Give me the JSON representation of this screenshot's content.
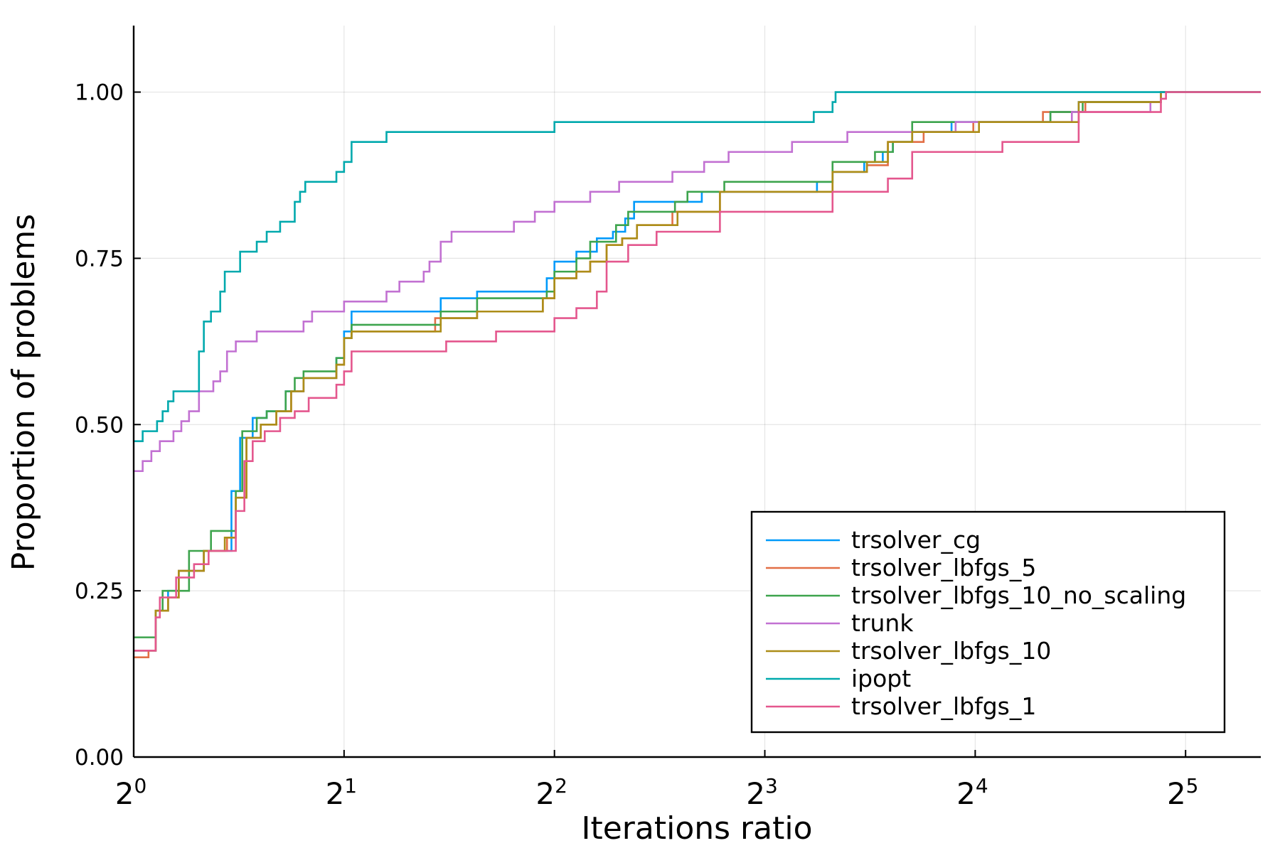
{
  "chart_data": {
    "type": "line",
    "step": true,
    "xlabel": "Iterations ratio",
    "ylabel": "Proportion of problems",
    "x_scale": "log2",
    "xlim": [
      1,
      41
    ],
    "ylim": [
      0,
      1.1
    ],
    "x_ticks": [
      {
        "base": "2",
        "exp": "0",
        "value": 1
      },
      {
        "base": "2",
        "exp": "1",
        "value": 2
      },
      {
        "base": "2",
        "exp": "2",
        "value": 4
      },
      {
        "base": "2",
        "exp": "3",
        "value": 8
      },
      {
        "base": "2",
        "exp": "4",
        "value": 16
      },
      {
        "base": "2",
        "exp": "5",
        "value": 32
      }
    ],
    "y_ticks": [
      {
        "label": "0.00",
        "value": 0
      },
      {
        "label": "0.25",
        "value": 0.25
      },
      {
        "label": "0.50",
        "value": 0.5
      },
      {
        "label": "0.75",
        "value": 0.75
      },
      {
        "label": "1.00",
        "value": 1.0
      }
    ],
    "grid": true,
    "legend_position": "bottom-right",
    "series": [
      {
        "name": "trsolver_cg",
        "color": "#009AFA",
        "points": [
          [
            1.0,
            0.16
          ],
          [
            1.075,
            0.22
          ],
          [
            1.12,
            0.25
          ],
          [
            1.16,
            0.28
          ],
          [
            1.26,
            0.31
          ],
          [
            1.38,
            0.4
          ],
          [
            1.42,
            0.48
          ],
          [
            1.48,
            0.51
          ],
          [
            1.55,
            0.52
          ],
          [
            1.65,
            0.55
          ],
          [
            1.75,
            0.57
          ],
          [
            1.95,
            0.6
          ],
          [
            2.0,
            0.64
          ],
          [
            2.05,
            0.67
          ],
          [
            2.75,
            0.69
          ],
          [
            3.1,
            0.7
          ],
          [
            3.9,
            0.72
          ],
          [
            4.0,
            0.745
          ],
          [
            4.3,
            0.76
          ],
          [
            4.6,
            0.78
          ],
          [
            4.85,
            0.79
          ],
          [
            5.05,
            0.81
          ],
          [
            5.2,
            0.835
          ],
          [
            6.5,
            0.85
          ],
          [
            9.5,
            0.865
          ],
          [
            10.0,
            0.88
          ],
          [
            11.1,
            0.895
          ],
          [
            11.8,
            0.91
          ],
          [
            12.2,
            0.925
          ],
          [
            13.0,
            0.94
          ],
          [
            14.8,
            0.955
          ],
          [
            20.5,
            0.97
          ],
          [
            22.5,
            0.985
          ],
          [
            29.5,
            1.0
          ],
          [
            41,
            1.0
          ]
        ]
      },
      {
        "name": "trsolver_lbfgs_5",
        "color": "#E26F46",
        "points": [
          [
            1.0,
            0.15
          ],
          [
            1.05,
            0.16
          ],
          [
            1.075,
            0.22
          ],
          [
            1.12,
            0.24
          ],
          [
            1.16,
            0.28
          ],
          [
            1.26,
            0.31
          ],
          [
            1.36,
            0.33
          ],
          [
            1.4,
            0.39
          ],
          [
            1.45,
            0.48
          ],
          [
            1.52,
            0.5
          ],
          [
            1.6,
            0.52
          ],
          [
            1.68,
            0.55
          ],
          [
            1.75,
            0.57
          ],
          [
            1.95,
            0.59
          ],
          [
            2.0,
            0.63
          ],
          [
            2.05,
            0.64
          ],
          [
            2.7,
            0.66
          ],
          [
            3.1,
            0.67
          ],
          [
            3.85,
            0.69
          ],
          [
            4.0,
            0.72
          ],
          [
            4.3,
            0.73
          ],
          [
            4.5,
            0.745
          ],
          [
            4.75,
            0.77
          ],
          [
            5.0,
            0.78
          ],
          [
            5.25,
            0.8
          ],
          [
            5.9,
            0.82
          ],
          [
            6.9,
            0.85
          ],
          [
            10.0,
            0.88
          ],
          [
            11.2,
            0.89
          ],
          [
            12.0,
            0.925
          ],
          [
            13.5,
            0.94
          ],
          [
            15.9,
            0.955
          ],
          [
            20.0,
            0.97
          ],
          [
            23.0,
            0.985
          ],
          [
            29.5,
            1.0
          ],
          [
            41,
            1.0
          ]
        ]
      },
      {
        "name": "trsolver_lbfgs_10_no_scaling",
        "color": "#3DA44D",
        "points": [
          [
            1.0,
            0.18
          ],
          [
            1.075,
            0.22
          ],
          [
            1.1,
            0.25
          ],
          [
            1.2,
            0.31
          ],
          [
            1.29,
            0.34
          ],
          [
            1.4,
            0.4
          ],
          [
            1.43,
            0.49
          ],
          [
            1.5,
            0.51
          ],
          [
            1.55,
            0.52
          ],
          [
            1.65,
            0.55
          ],
          [
            1.7,
            0.57
          ],
          [
            1.75,
            0.58
          ],
          [
            1.95,
            0.6
          ],
          [
            2.0,
            0.63
          ],
          [
            2.05,
            0.65
          ],
          [
            2.75,
            0.67
          ],
          [
            3.1,
            0.69
          ],
          [
            3.9,
            0.7
          ],
          [
            4.0,
            0.73
          ],
          [
            4.3,
            0.75
          ],
          [
            4.5,
            0.775
          ],
          [
            4.9,
            0.8
          ],
          [
            5.1,
            0.82
          ],
          [
            5.95,
            0.835
          ],
          [
            6.2,
            0.85
          ],
          [
            7.0,
            0.865
          ],
          [
            10.0,
            0.895
          ],
          [
            11.5,
            0.91
          ],
          [
            12.2,
            0.925
          ],
          [
            13.0,
            0.955
          ],
          [
            16.5,
            0.955
          ],
          [
            20.5,
            0.97
          ],
          [
            22.8,
            0.985
          ],
          [
            29.5,
            1.0
          ],
          [
            41,
            1.0
          ]
        ]
      },
      {
        "name": "trunk",
        "color": "#C271D2",
        "points": [
          [
            1.0,
            0.43
          ],
          [
            1.03,
            0.445
          ],
          [
            1.06,
            0.46
          ],
          [
            1.09,
            0.475
          ],
          [
            1.14,
            0.49
          ],
          [
            1.17,
            0.505
          ],
          [
            1.2,
            0.52
          ],
          [
            1.24,
            0.55
          ],
          [
            1.3,
            0.565
          ],
          [
            1.33,
            0.58
          ],
          [
            1.36,
            0.61
          ],
          [
            1.4,
            0.625
          ],
          [
            1.5,
            0.64
          ],
          [
            1.75,
            0.655
          ],
          [
            1.8,
            0.67
          ],
          [
            2.0,
            0.685
          ],
          [
            2.3,
            0.7
          ],
          [
            2.4,
            0.715
          ],
          [
            2.6,
            0.73
          ],
          [
            2.65,
            0.745
          ],
          [
            2.75,
            0.775
          ],
          [
            2.85,
            0.79
          ],
          [
            3.5,
            0.805
          ],
          [
            3.75,
            0.82
          ],
          [
            4.0,
            0.835
          ],
          [
            4.5,
            0.85
          ],
          [
            4.95,
            0.865
          ],
          [
            5.9,
            0.88
          ],
          [
            6.55,
            0.895
          ],
          [
            7.1,
            0.91
          ],
          [
            8.75,
            0.925
          ],
          [
            10.5,
            0.94
          ],
          [
            15.0,
            0.955
          ],
          [
            20.5,
            0.955
          ],
          [
            22.0,
            0.97
          ],
          [
            28.5,
            0.985
          ],
          [
            29.5,
            1.0
          ],
          [
            41,
            1.0
          ]
        ]
      },
      {
        "name": "trsolver_lbfgs_10",
        "color": "#AC8D18",
        "points": [
          [
            1.0,
            0.16
          ],
          [
            1.075,
            0.22
          ],
          [
            1.12,
            0.24
          ],
          [
            1.16,
            0.28
          ],
          [
            1.26,
            0.31
          ],
          [
            1.35,
            0.33
          ],
          [
            1.4,
            0.39
          ],
          [
            1.45,
            0.48
          ],
          [
            1.52,
            0.5
          ],
          [
            1.6,
            0.52
          ],
          [
            1.68,
            0.55
          ],
          [
            1.75,
            0.57
          ],
          [
            1.95,
            0.59
          ],
          [
            2.0,
            0.63
          ],
          [
            2.05,
            0.64
          ],
          [
            2.75,
            0.66
          ],
          [
            3.1,
            0.67
          ],
          [
            3.85,
            0.69
          ],
          [
            4.0,
            0.72
          ],
          [
            4.3,
            0.73
          ],
          [
            4.5,
            0.745
          ],
          [
            4.75,
            0.77
          ],
          [
            5.0,
            0.78
          ],
          [
            5.25,
            0.8
          ],
          [
            6.0,
            0.82
          ],
          [
            6.9,
            0.85
          ],
          [
            10.0,
            0.88
          ],
          [
            11.2,
            0.895
          ],
          [
            12.0,
            0.925
          ],
          [
            13.0,
            0.94
          ],
          [
            16.2,
            0.955
          ],
          [
            22.5,
            0.985
          ],
          [
            29.5,
            1.0
          ],
          [
            41,
            1.0
          ]
        ]
      },
      {
        "name": "ipopt",
        "color": "#00A9AD",
        "points": [
          [
            1.0,
            0.475
          ],
          [
            1.03,
            0.49
          ],
          [
            1.08,
            0.505
          ],
          [
            1.1,
            0.52
          ],
          [
            1.12,
            0.535
          ],
          [
            1.14,
            0.55
          ],
          [
            1.24,
            0.61
          ],
          [
            1.26,
            0.655
          ],
          [
            1.29,
            0.67
          ],
          [
            1.33,
            0.7
          ],
          [
            1.35,
            0.73
          ],
          [
            1.42,
            0.76
          ],
          [
            1.5,
            0.775
          ],
          [
            1.55,
            0.79
          ],
          [
            1.62,
            0.805
          ],
          [
            1.7,
            0.835
          ],
          [
            1.73,
            0.85
          ],
          [
            1.76,
            0.865
          ],
          [
            1.95,
            0.88
          ],
          [
            2.0,
            0.895
          ],
          [
            2.05,
            0.925
          ],
          [
            2.3,
            0.94
          ],
          [
            4.0,
            0.955
          ],
          [
            9.4,
            0.97
          ],
          [
            10.0,
            0.985
          ],
          [
            10.1,
            1.0
          ],
          [
            41,
            1.0
          ]
        ]
      },
      {
        "name": "trsolver_lbfgs_1",
        "color": "#E4578E",
        "points": [
          [
            1.0,
            0.16
          ],
          [
            1.075,
            0.21
          ],
          [
            1.09,
            0.24
          ],
          [
            1.15,
            0.27
          ],
          [
            1.22,
            0.29
          ],
          [
            1.28,
            0.31
          ],
          [
            1.4,
            0.37
          ],
          [
            1.44,
            0.445
          ],
          [
            1.48,
            0.475
          ],
          [
            1.54,
            0.49
          ],
          [
            1.62,
            0.51
          ],
          [
            1.7,
            0.52
          ],
          [
            1.78,
            0.54
          ],
          [
            1.95,
            0.56
          ],
          [
            2.0,
            0.58
          ],
          [
            2.05,
            0.61
          ],
          [
            2.8,
            0.625
          ],
          [
            3.3,
            0.64
          ],
          [
            4.0,
            0.66
          ],
          [
            4.3,
            0.675
          ],
          [
            4.6,
            0.7
          ],
          [
            4.75,
            0.745
          ],
          [
            5.1,
            0.77
          ],
          [
            5.6,
            0.79
          ],
          [
            6.9,
            0.82
          ],
          [
            10.0,
            0.85
          ],
          [
            12.0,
            0.87
          ],
          [
            13.0,
            0.91
          ],
          [
            17.5,
            0.925
          ],
          [
            22.5,
            0.97
          ],
          [
            29.5,
            0.99
          ],
          [
            30.0,
            1.0
          ],
          [
            41,
            1.0
          ]
        ]
      }
    ]
  }
}
